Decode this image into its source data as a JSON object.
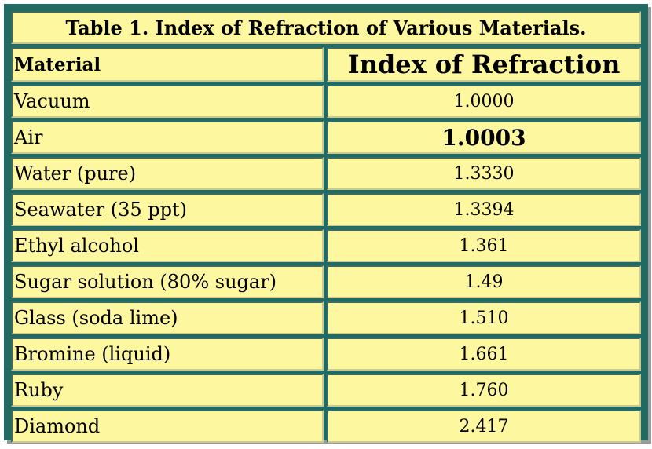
{
  "table": {
    "caption": "Table 1. Index of Refraction of Various Materials.",
    "headers": [
      "Material",
      "Index of Refraction"
    ],
    "rows": [
      {
        "material": "Vacuum",
        "index": "1.0000"
      },
      {
        "material": "Air",
        "index": "1.0003"
      },
      {
        "material": "Water (pure)",
        "index": "1.3330"
      },
      {
        "material": "Seawater (35 ppt)",
        "index": "1.3394"
      },
      {
        "material": "Ethyl alcohol",
        "index": "1.361"
      },
      {
        "material": "Sugar solution (80% sugar)",
        "index": "1.49"
      },
      {
        "material": "Glass (soda lime)",
        "index": "1.510"
      },
      {
        "material": "Bromine (liquid)",
        "index": "1.661"
      },
      {
        "material": "Ruby",
        "index": "1.760"
      },
      {
        "material": "Diamond",
        "index": "2.417"
      }
    ]
  },
  "colors": {
    "frame": "#1f6b64",
    "cell_background": "#fdf7a0"
  }
}
